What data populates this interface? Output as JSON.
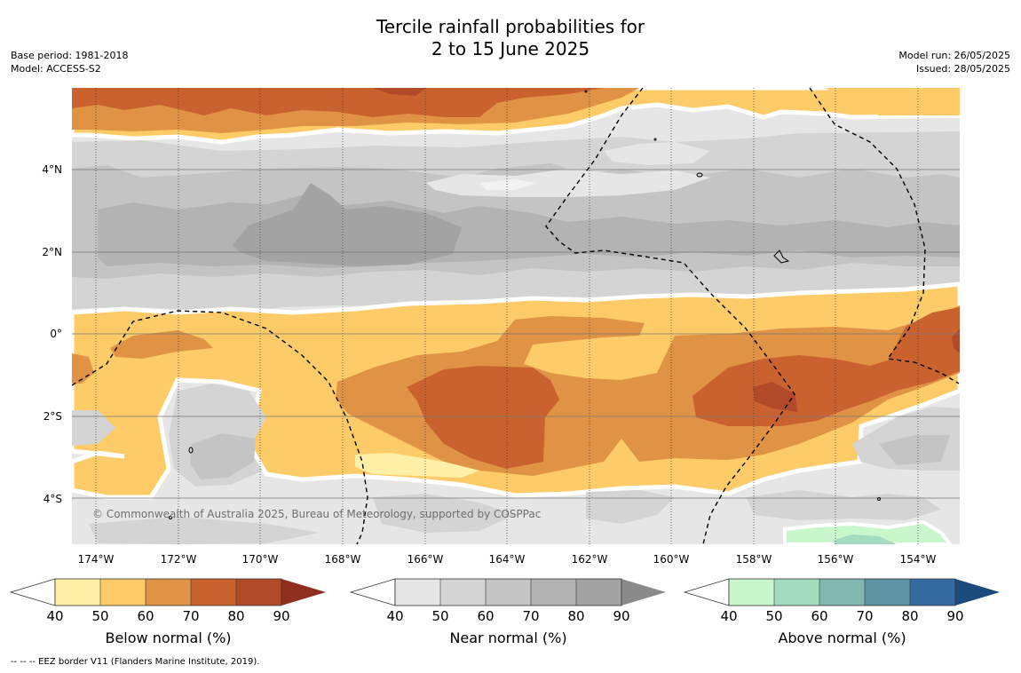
{
  "title": {
    "line1": "Tercile rainfall probabilities for",
    "line2": "2 to 15 June 2025"
  },
  "meta": {
    "base_period": "Base period: 1981-2018",
    "model": "Model: ACCESS-S2",
    "model_run": "Model run: 26/05/2025",
    "issued": "Issued: 28/05/2025"
  },
  "map": {
    "lat_ticks": [
      "4°N",
      "2°N",
      "0°",
      "2°S",
      "4°S"
    ],
    "lon_ticks": [
      "174°W",
      "172°W",
      "170°W",
      "168°W",
      "166°W",
      "164°W",
      "162°W",
      "160°W",
      "158°W",
      "156°W",
      "154°W"
    ],
    "copyright": "© Commonwealth of Australia 2025, Bureau of Meteorology, supported by COSPPac",
    "colors": {
      "below": [
        "#fff0a8",
        "#fdcb67",
        "#e09345",
        "#ca6230",
        "#b04a28",
        "#8f2f20"
      ],
      "near": [
        "#e6e6e6",
        "#d4d4d4",
        "#c4c4c4",
        "#b3b3b3",
        "#a3a3a3",
        "#8a8a8a"
      ],
      "above": [
        "#c8f7cc",
        "#a4dcc0",
        "#82b7b0",
        "#5d93a3",
        "#356aa0",
        "#1b4a7c"
      ]
    }
  },
  "legend": {
    "ticks": [
      "40",
      "50",
      "60",
      "70",
      "80",
      "90"
    ],
    "below_label": "Below normal (%)",
    "near_label": "Near normal (%)",
    "above_label": "Above normal (%)"
  },
  "footnote": "--  --  -- EEZ border V11 (Flanders Marine Institute, 2019)."
}
